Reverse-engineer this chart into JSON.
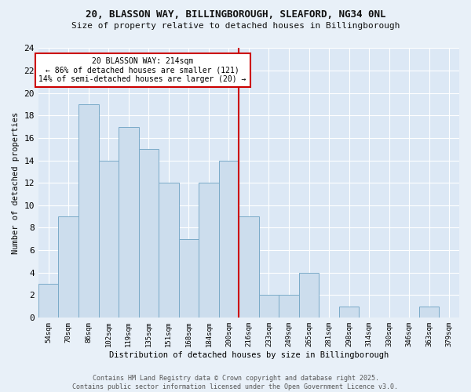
{
  "title1": "20, BLASSON WAY, BILLINGBOROUGH, SLEAFORD, NG34 0NL",
  "title2": "Size of property relative to detached houses in Billingborough",
  "xlabel": "Distribution of detached houses by size in Billingborough",
  "ylabel": "Number of detached properties",
  "categories": [
    "54sqm",
    "70sqm",
    "86sqm",
    "102sqm",
    "119sqm",
    "135sqm",
    "151sqm",
    "168sqm",
    "184sqm",
    "200sqm",
    "216sqm",
    "233sqm",
    "249sqm",
    "265sqm",
    "281sqm",
    "298sqm",
    "314sqm",
    "330sqm",
    "346sqm",
    "363sqm",
    "379sqm"
  ],
  "values": [
    3,
    9,
    19,
    14,
    17,
    15,
    12,
    7,
    12,
    14,
    9,
    2,
    2,
    4,
    0,
    1,
    0,
    0,
    0,
    1,
    0
  ],
  "bar_color": "#ccdded",
  "bar_edge_color": "#7aaac8",
  "highlight_index": 10,
  "annotation_text": "20 BLASSON WAY: 214sqm\n← 86% of detached houses are smaller (121)\n14% of semi-detached houses are larger (20) →",
  "annotation_box_color": "#ffffff",
  "annotation_box_edge": "#cc0000",
  "vline_color": "#cc0000",
  "ylim": [
    0,
    24
  ],
  "yticks": [
    0,
    2,
    4,
    6,
    8,
    10,
    12,
    14,
    16,
    18,
    20,
    22,
    24
  ],
  "bg_color": "#dce8f5",
  "plot_bg_color": "#dce8f5",
  "fig_bg_color": "#e8f0f8",
  "footer": "Contains HM Land Registry data © Crown copyright and database right 2025.\nContains public sector information licensed under the Open Government Licence v3.0.",
  "figsize": [
    6.0,
    5.0
  ],
  "dpi": 100
}
